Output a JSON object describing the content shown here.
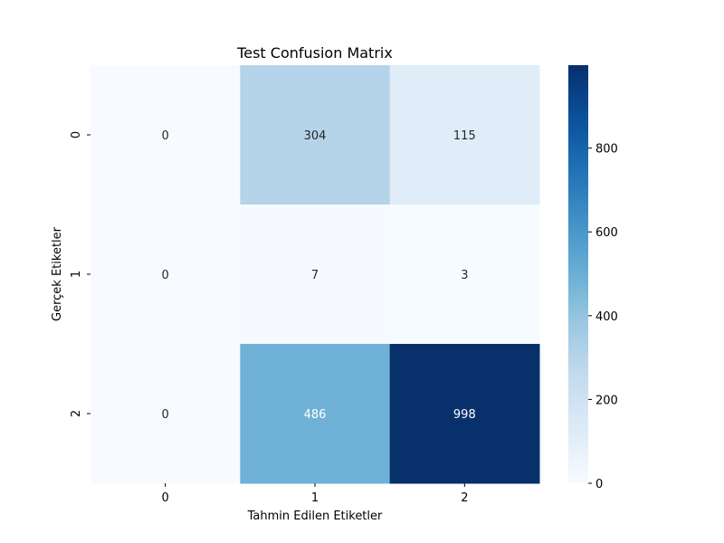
{
  "chart_data": {
    "type": "heatmap",
    "title": "Test Confusion Matrix",
    "xlabel": "Tahmin Edilen Etiketler",
    "ylabel": "Gerçek Etiketler",
    "x_categories": [
      "0",
      "1",
      "2"
    ],
    "y_categories": [
      "0",
      "1",
      "2"
    ],
    "values": [
      [
        0,
        304,
        115
      ],
      [
        0,
        7,
        3
      ],
      [
        0,
        486,
        998
      ]
    ],
    "colormap": "Blues",
    "colorbar": {
      "range": [
        0,
        998
      ],
      "ticks": [
        0,
        200,
        400,
        600,
        800
      ],
      "tick_labels": [
        "0",
        "200",
        "400",
        "600",
        "800"
      ]
    },
    "colors": {
      "low": "#f7fbff",
      "high": "#08306b",
      "annotation_dark": "#262626",
      "annotation_light": "#ffffff"
    }
  }
}
